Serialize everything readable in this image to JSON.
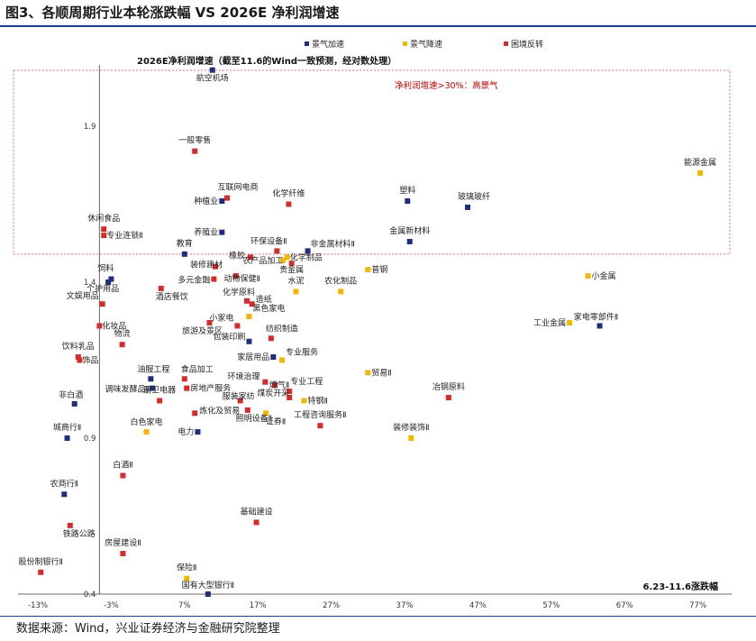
{
  "header": {
    "title": "图3、各顺周期行业本轮涨跌幅 VS 2026E 净利润增速",
    "source": "数据来源：Wind，兴业证券经济与金融研究院整理"
  },
  "chart_data": {
    "type": "scatter",
    "title": "图3、各顺周期行业本轮涨跌幅 VS 2026E 净利润增速",
    "xlabel": "6.23-11.6涨跌幅",
    "ylabel": "2026E净利润增速（截至11.6的Wind一致预测，经对数处理）",
    "xlim": [
      -15,
      80
    ],
    "ylim": [
      0.4,
      2.15
    ],
    "x_ticks": [
      -13,
      -3,
      7,
      17,
      27,
      37,
      47,
      57,
      67,
      77
    ],
    "x_tick_labels": [
      "-13%",
      "-3%",
      "7%",
      "17%",
      "27%",
      "37%",
      "47%",
      "57%",
      "67%",
      "77%"
    ],
    "y_ticks": [
      0.4,
      0.9,
      1.4,
      1.9
    ],
    "y_tick_labels": [
      "0.4",
      "0.9",
      "1.4",
      "1.9"
    ],
    "y_axis_at_x": -4.6,
    "annotation": "净利润增速>30%：高景气",
    "high_growth_threshold_y": 1.49,
    "legend": [
      {
        "key": "accel",
        "name": "景气加速",
        "color": "#1f2d7a"
      },
      {
        "key": "decel",
        "name": "景气降速",
        "color": "#f2b705"
      },
      {
        "key": "reversal",
        "name": "困境反转",
        "color": "#d42b2b"
      }
    ],
    "series": [
      {
        "name": "景气加速",
        "color": "#1f2d7a",
        "points": [
          {
            "label": "航空机场",
            "x": 10.8,
            "y": 2.08
          },
          {
            "label": "塑料",
            "x": 37.4,
            "y": 1.66
          },
          {
            "label": "玻璃玻纤",
            "x": 45.6,
            "y": 1.64
          },
          {
            "label": "种植业",
            "x": 12.1,
            "y": 1.66
          },
          {
            "label": "养殖业",
            "x": 12.1,
            "y": 1.56
          },
          {
            "label": "金属新材料",
            "x": 37.7,
            "y": 1.53
          },
          {
            "label": "非金属材料Ⅱ",
            "x": 23.8,
            "y": 1.5
          },
          {
            "label": "教育",
            "x": 7.0,
            "y": 1.49
          },
          {
            "label": "饲料",
            "x": -3.0,
            "y": 1.41
          },
          {
            "label": "个护用品",
            "x": -3.4,
            "y": 1.4
          },
          {
            "label": "家电零部件Ⅱ",
            "x": 63.6,
            "y": 1.26
          },
          {
            "label": "包装印刷",
            "x": 15.8,
            "y": 1.21
          },
          {
            "label": "家居用品",
            "x": 19.1,
            "y": 1.16
          },
          {
            "label": "油服工程",
            "x": 2.4,
            "y": 1.09
          },
          {
            "label": "调味发酵品Ⅱ",
            "x": 2.6,
            "y": 1.06
          },
          {
            "label": "非白酒",
            "x": -8.0,
            "y": 1.01
          },
          {
            "label": "城商行Ⅱ",
            "x": -9.0,
            "y": 0.9
          },
          {
            "label": "电力",
            "x": 8.8,
            "y": 0.92
          },
          {
            "label": "农商行Ⅱ",
            "x": -9.4,
            "y": 0.72
          },
          {
            "label": "国有大型银行Ⅱ",
            "x": 10.2,
            "y": 0.4
          }
        ]
      },
      {
        "name": "景气降速",
        "color": "#f2b705",
        "points": [
          {
            "label": "能源金属",
            "x": 77.3,
            "y": 1.75
          },
          {
            "label": "农产品加工",
            "x": 20.4,
            "y": 1.47
          },
          {
            "label": "化学制品",
            "x": 21.0,
            "y": 1.48
          },
          {
            "label": "普钢",
            "x": 32.0,
            "y": 1.44
          },
          {
            "label": "小金属",
            "x": 62.0,
            "y": 1.42
          },
          {
            "label": "水泥",
            "x": 22.2,
            "y": 1.37
          },
          {
            "label": "农化制品",
            "x": 28.3,
            "y": 1.37
          },
          {
            "label": "工业金属",
            "x": 59.5,
            "y": 1.27
          },
          {
            "label": "黑色家电",
            "x": 15.8,
            "y": 1.29
          },
          {
            "label": "专业服务",
            "x": 20.3,
            "y": 1.15
          },
          {
            "label": "贸易Ⅱ",
            "x": 32.0,
            "y": 1.11
          },
          {
            "label": "特钢Ⅱ",
            "x": 23.3,
            "y": 1.02
          },
          {
            "label": "白色家电",
            "x": 1.8,
            "y": 0.92
          },
          {
            "label": "证券Ⅱ",
            "x": 18.1,
            "y": 0.98
          },
          {
            "label": "装修装饰Ⅱ",
            "x": 37.9,
            "y": 0.9
          },
          {
            "label": "保险Ⅱ",
            "x": 7.3,
            "y": 0.45
          }
        ]
      },
      {
        "name": "困境反转",
        "color": "#d42b2b",
        "points": [
          {
            "label": "一般零售",
            "x": 8.4,
            "y": 1.82
          },
          {
            "label": "互联网电商",
            "x": 12.8,
            "y": 1.67
          },
          {
            "label": "化学纤维",
            "x": 21.2,
            "y": 1.65
          },
          {
            "label": "休闲食品",
            "x": -4.0,
            "y": 1.57
          },
          {
            "label": "专业连锁Ⅱ",
            "x": -4.0,
            "y": 1.55
          },
          {
            "label": "橡胶",
            "x": 16.0,
            "y": 1.48
          },
          {
            "label": "环保设备Ⅱ",
            "x": 19.6,
            "y": 1.5
          },
          {
            "label": "装修建材",
            "x": 11.2,
            "y": 1.45
          },
          {
            "label": "动物保健Ⅱ",
            "x": 14.0,
            "y": 1.42
          },
          {
            "label": "贵金属",
            "x": 21.6,
            "y": 1.46
          },
          {
            "label": "多元金融",
            "x": 11.0,
            "y": 1.41
          },
          {
            "label": "酒店餐饮",
            "x": 3.8,
            "y": 1.38
          },
          {
            "label": "化学原料",
            "x": 15.5,
            "y": 1.34
          },
          {
            "label": "造纸",
            "x": 16.2,
            "y": 1.33
          },
          {
            "label": "文娱用品",
            "x": -4.2,
            "y": 1.33
          },
          {
            "label": "小家电",
            "x": 14.2,
            "y": 1.26
          },
          {
            "label": "化妆品",
            "x": -4.6,
            "y": 1.26
          },
          {
            "label": "旅游及景区",
            "x": 10.4,
            "y": 1.27
          },
          {
            "label": "纺织制造",
            "x": 18.8,
            "y": 1.22
          },
          {
            "label": "物流",
            "x": -1.5,
            "y": 1.2
          },
          {
            "label": "饮料乳品",
            "x": -7.5,
            "y": 1.16
          },
          {
            "label": "饰品",
            "x": -7.3,
            "y": 1.15
          },
          {
            "label": "食品加工",
            "x": 7.0,
            "y": 1.09
          },
          {
            "label": "环境治理",
            "x": 18.0,
            "y": 1.08
          },
          {
            "label": "燃气Ⅱ",
            "x": 19.3,
            "y": 1.07
          },
          {
            "label": "房地产服务",
            "x": 7.3,
            "y": 1.06
          },
          {
            "label": "专业工程",
            "x": 21.3,
            "y": 1.05
          },
          {
            "label": "厨卫电器",
            "x": 3.6,
            "y": 1.02
          },
          {
            "label": "服装家纺",
            "x": 14.6,
            "y": 1.02
          },
          {
            "label": "煤炭开采",
            "x": 21.3,
            "y": 1.03
          },
          {
            "label": "冶钢原料",
            "x": 43.0,
            "y": 1.03
          },
          {
            "label": "炼化及贸易",
            "x": 8.4,
            "y": 0.98
          },
          {
            "label": "照明设备Ⅱ",
            "x": 15.6,
            "y": 0.99
          },
          {
            "label": "工程咨询服务Ⅱ",
            "x": 25.5,
            "y": 0.94
          },
          {
            "label": "白酒Ⅱ",
            "x": -1.4,
            "y": 0.78
          },
          {
            "label": "基础建设",
            "x": 16.8,
            "y": 0.63
          },
          {
            "label": "铁路公路",
            "x": -8.6,
            "y": 0.62
          },
          {
            "label": "房屋建设Ⅱ",
            "x": -1.4,
            "y": 0.53
          },
          {
            "label": "股份制银行Ⅱ",
            "x": -12.6,
            "y": 0.47
          }
        ]
      }
    ]
  }
}
